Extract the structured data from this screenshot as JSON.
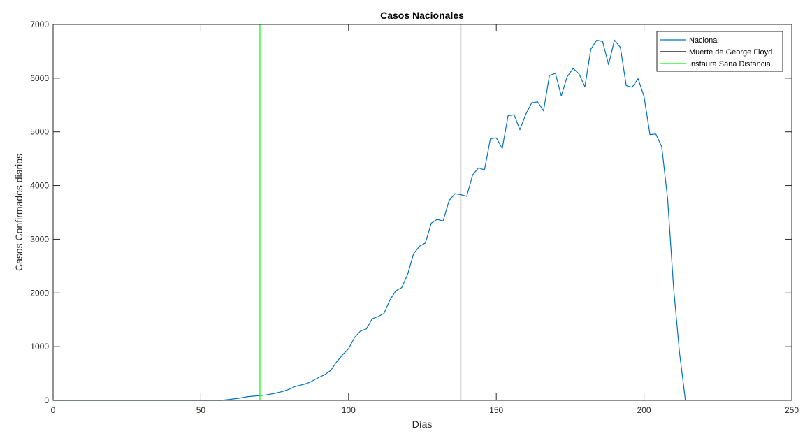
{
  "chart_data": {
    "type": "line",
    "title": "Casos Nacionales",
    "xlabel": "Días",
    "ylabel": "Casos Confirmados diarios",
    "xlim": [
      0,
      250
    ],
    "ylim": [
      0,
      7000
    ],
    "x_ticks": [
      0,
      50,
      100,
      150,
      200,
      250
    ],
    "y_ticks": [
      0,
      1000,
      2000,
      3000,
      4000,
      5000,
      6000,
      7000
    ],
    "grid": false,
    "legend_position": "top-right",
    "series": [
      {
        "name": "Nacional",
        "color": "#0072BD",
        "x": [
          0,
          10,
          20,
          30,
          40,
          50,
          55,
          57,
          60,
          63,
          66,
          68,
          70,
          72,
          75,
          78,
          80,
          82,
          85,
          87,
          90,
          92,
          94,
          96,
          98,
          100,
          102,
          104,
          106,
          108,
          110,
          112,
          114,
          116,
          118,
          120,
          122,
          124,
          126,
          128,
          130,
          132,
          134,
          136,
          138,
          140,
          142,
          144,
          146,
          148,
          150,
          152,
          154,
          156,
          158,
          160,
          162,
          164,
          166,
          168,
          170,
          172,
          174,
          176,
          178,
          180,
          182,
          184,
          186,
          188,
          190,
          192,
          194,
          196,
          198,
          200,
          202,
          204,
          206,
          208,
          210,
          212,
          214
        ],
        "y": [
          0,
          0,
          0,
          0,
          0,
          0,
          0,
          0,
          20,
          40,
          70,
          80,
          90,
          100,
          130,
          170,
          210,
          260,
          300,
          340,
          430,
          480,
          560,
          720,
          850,
          960,
          1170,
          1290,
          1330,
          1520,
          1560,
          1620,
          1870,
          2040,
          2100,
          2350,
          2730,
          2870,
          2930,
          3300,
          3370,
          3340,
          3720,
          3850,
          3830,
          3800,
          4200,
          4330,
          4290,
          4870,
          4890,
          4690,
          5300,
          5320,
          5040,
          5330,
          5540,
          5560,
          5390,
          6050,
          6090,
          5670,
          6030,
          6180,
          6080,
          5840,
          6540,
          6710,
          6680,
          6250,
          6710,
          6570,
          5860,
          5830,
          5990,
          5660,
          4950,
          4960,
          4720,
          3750,
          2100,
          900,
          0
        ]
      },
      {
        "name": "Muerte de George Floyd",
        "color": "#000000",
        "vline_x": 138
      },
      {
        "name": "Instaura Sana Distancia",
        "color": "#00FF00",
        "vline_x": 70
      }
    ]
  }
}
